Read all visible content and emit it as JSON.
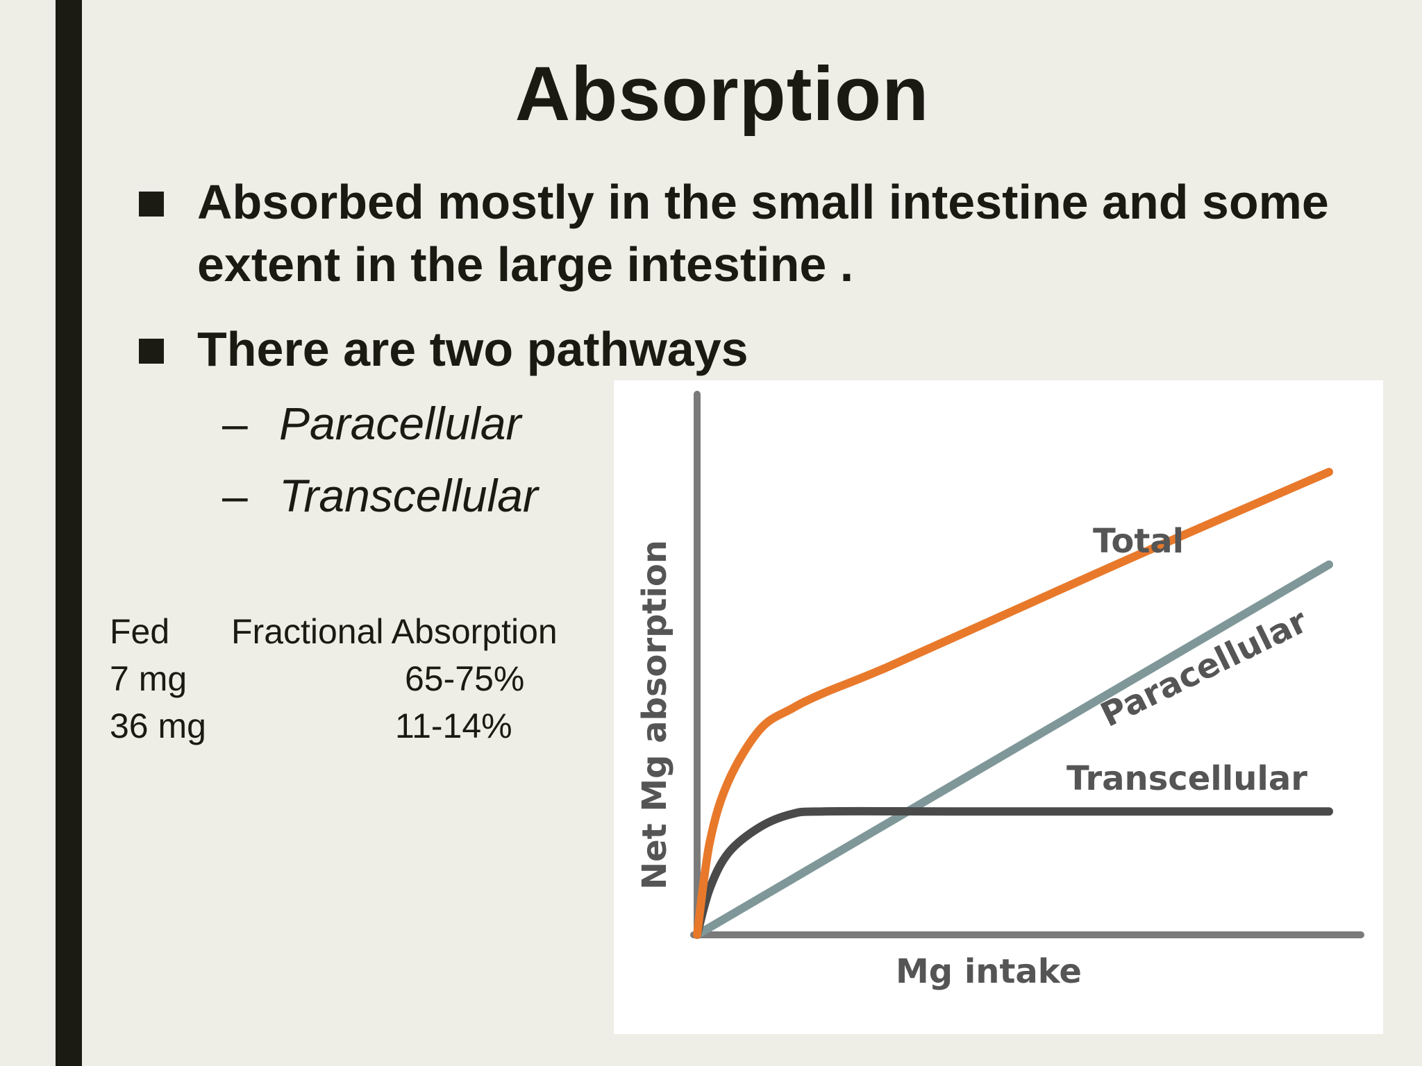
{
  "slide": {
    "title": "Absorption",
    "bullets": [
      {
        "line1": "Absorbed mostly in the small intestine and some",
        "line2": "extent in the large intestine ."
      },
      {
        "line1": "There are two pathways"
      }
    ],
    "sub_bullets": [
      {
        "dash": "–",
        "label": "Paracellular"
      },
      {
        "dash": "–",
        "label": "Transcellular"
      }
    ],
    "table": {
      "headers": [
        "Fed",
        "Fractional Absorption"
      ],
      "rows": [
        [
          "7 mg",
          "65-75%"
        ],
        [
          "36 mg",
          "11-14%"
        ]
      ]
    }
  },
  "chart_data": {
    "type": "line",
    "title": "",
    "xlabel": "Mg intake",
    "ylabel": "Net Mg absorption",
    "xlim": [
      0,
      100
    ],
    "ylim": [
      0,
      100
    ],
    "grid": false,
    "series": [
      {
        "name": "Total",
        "color": "#e8792b",
        "x": [
          0,
          2,
          5,
          10,
          15,
          20,
          30,
          50,
          70,
          100
        ],
        "y": [
          0,
          18,
          30,
          40,
          44,
          47,
          52,
          63,
          74,
          90
        ]
      },
      {
        "name": "Paracellular",
        "color": "#7f9799",
        "x": [
          0,
          100
        ],
        "y": [
          0,
          72
        ]
      },
      {
        "name": "Transcellular",
        "color": "#4a4a4a",
        "x": [
          0,
          2,
          5,
          10,
          15,
          20,
          40,
          60,
          80,
          100
        ],
        "y": [
          0,
          9,
          16,
          21,
          23.5,
          24,
          24,
          24,
          24,
          24
        ]
      }
    ]
  }
}
